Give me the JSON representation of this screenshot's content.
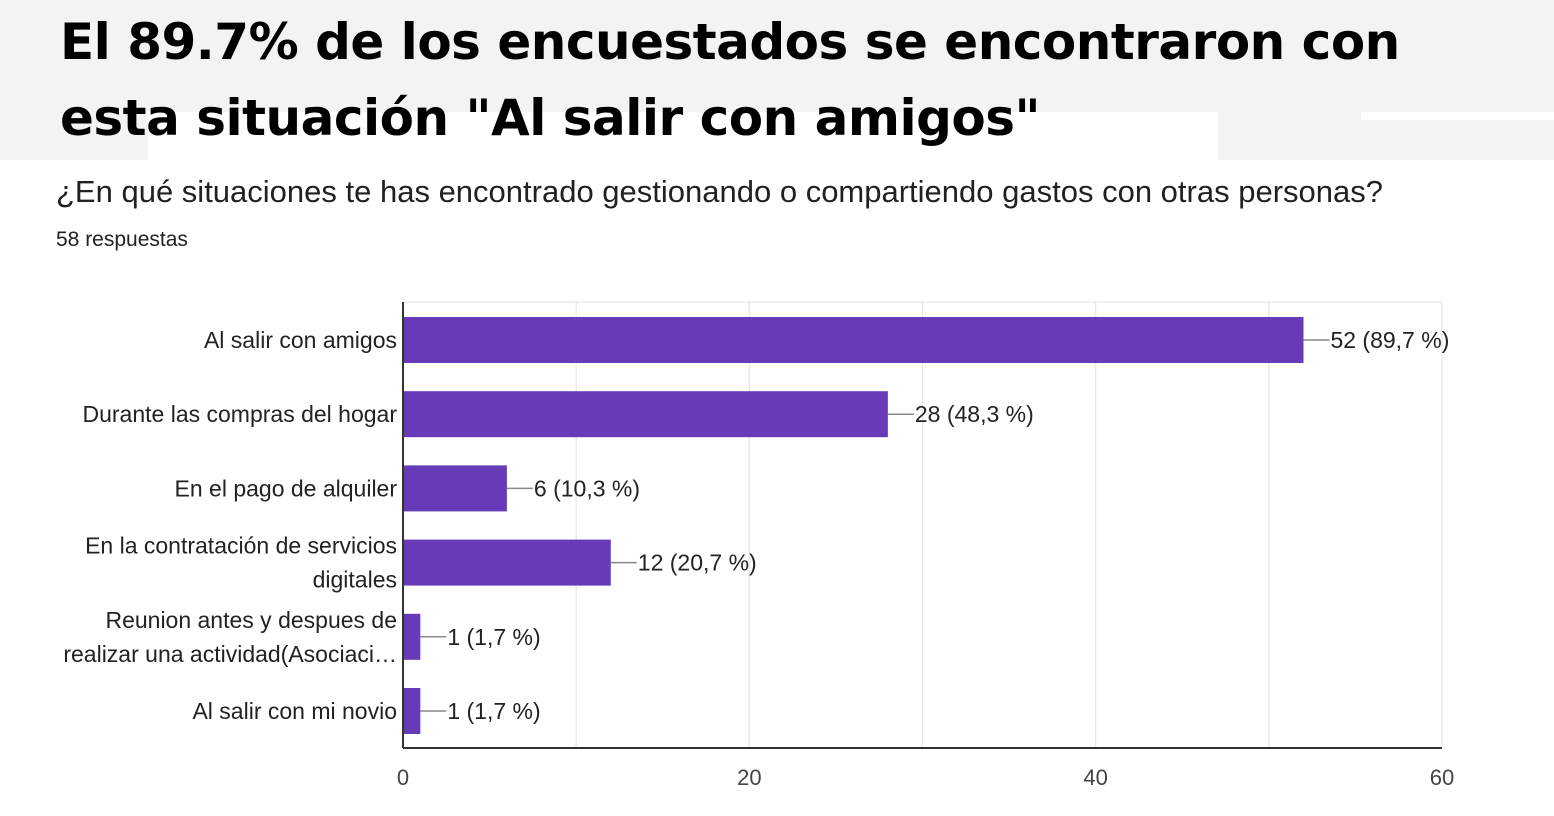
{
  "headline": {
    "line1": "El 89.7% de los encuestados se encontraron con",
    "line2": "esta situación \"Al salir con amigos\""
  },
  "form": {
    "question": "¿En qué situaciones te has encontrado gestionando o compartiendo gastos con otras personas?",
    "responses": "58 respuestas"
  },
  "colors": {
    "bar": "#673ab7",
    "banner": "#f3f3f3"
  },
  "chart_data": {
    "type": "bar",
    "orientation": "horizontal",
    "categories": [
      [
        "Al salir con amigos"
      ],
      [
        "Durante las compras del hogar"
      ],
      [
        "En el pago de alquiler"
      ],
      [
        "En la contratación de servicios",
        "digitales"
      ],
      [
        "Reunion antes y despues de",
        "realizar una actividad(Asociaci…"
      ],
      [
        "Al salir con mi novio"
      ]
    ],
    "values": [
      52,
      28,
      6,
      12,
      1,
      1
    ],
    "data_labels": [
      "52 (89,7 %)",
      "28 (48,3 %)",
      "6 (10,3 %)",
      "12 (20,7 %)",
      "1 (1,7 %)",
      "1 (1,7 %)"
    ],
    "xlim": [
      0,
      60
    ],
    "xticks": [
      0,
      20,
      40,
      60
    ],
    "grid": true,
    "legend": "none"
  }
}
